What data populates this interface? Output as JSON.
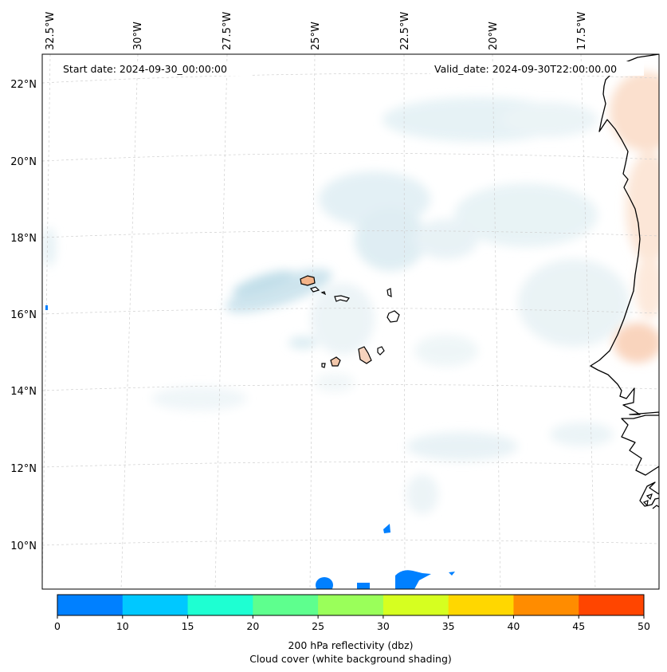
{
  "header": {
    "start_date": "Start date: 2024-09-30_00:00:00",
    "valid_date": "Valid_date: 2024-09-30T22:00:00.00"
  },
  "map": {
    "lon_labels": [
      "32.5°W",
      "30°W",
      "27.5°W",
      "25°W",
      "22.5°W",
      "20°W",
      "17.5°W"
    ],
    "lat_labels": [
      "22°N",
      "20°N",
      "18°N",
      "16°N",
      "14°N",
      "12°N",
      "10°N"
    ],
    "region": "Cabo Verde / West African coast",
    "gridlines": true
  },
  "colorbar": {
    "ticks": [
      "0",
      "10",
      "15",
      "20",
      "25",
      "30",
      "35",
      "40",
      "45",
      "50"
    ],
    "colors": [
      "#0080ff",
      "#00c8ff",
      "#1effd2",
      "#5eff8e",
      "#9aff5a",
      "#d6ff20",
      "#ffd700",
      "#ff8c00",
      "#ff4500"
    ],
    "label": "200 hPa reflectivity (dbz)",
    "sublabel": "Cloud cover (white background shading)"
  }
}
